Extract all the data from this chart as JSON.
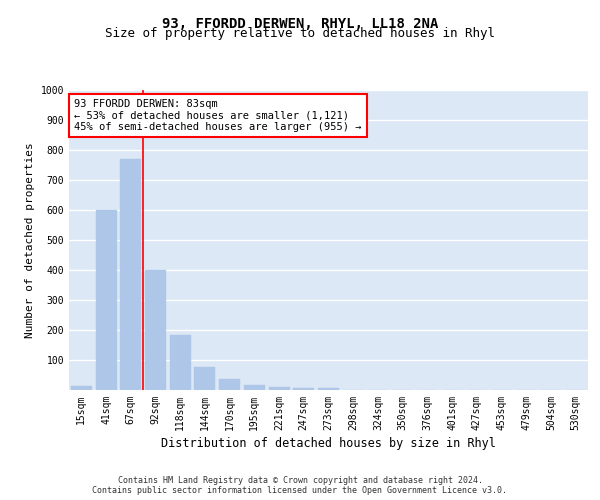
{
  "title1": "93, FFORDD DERWEN, RHYL, LL18 2NA",
  "title2": "Size of property relative to detached houses in Rhyl",
  "xlabel": "Distribution of detached houses by size in Rhyl",
  "ylabel": "Number of detached properties",
  "categories": [
    "15sqm",
    "41sqm",
    "67sqm",
    "92sqm",
    "118sqm",
    "144sqm",
    "170sqm",
    "195sqm",
    "221sqm",
    "247sqm",
    "273sqm",
    "298sqm",
    "324sqm",
    "350sqm",
    "376sqm",
    "401sqm",
    "427sqm",
    "453sqm",
    "479sqm",
    "504sqm",
    "530sqm"
  ],
  "values": [
    15,
    600,
    770,
    400,
    185,
    78,
    38,
    18,
    10,
    8,
    8,
    0,
    0,
    0,
    0,
    0,
    0,
    0,
    0,
    0,
    0
  ],
  "bar_color": "#aec6e8",
  "bar_edgecolor": "#aec6e8",
  "vline_color": "red",
  "annotation_text": "93 FFORDD DERWEN: 83sqm\n← 53% of detached houses are smaller (1,121)\n45% of semi-detached houses are larger (955) →",
  "annotation_box_color": "white",
  "annotation_box_edgecolor": "red",
  "ylim": [
    0,
    1000
  ],
  "yticks": [
    0,
    100,
    200,
    300,
    400,
    500,
    600,
    700,
    800,
    900,
    1000
  ],
  "background_color": "#dce8f5",
  "grid_color": "white",
  "footer1": "Contains HM Land Registry data © Crown copyright and database right 2024.",
  "footer2": "Contains public sector information licensed under the Open Government Licence v3.0.",
  "title1_fontsize": 10,
  "title2_fontsize": 9,
  "tick_fontsize": 7,
  "ylabel_fontsize": 8,
  "xlabel_fontsize": 8.5,
  "annot_fontsize": 7.5
}
